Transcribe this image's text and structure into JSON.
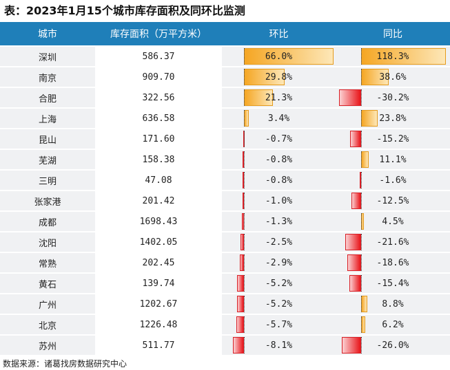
{
  "title": "表：2023年1月15个城市库存面积及同环比监测",
  "headers": {
    "city": "城市",
    "area": "库存面积（万平方米）",
    "mom": "环比",
    "yoy": "同比"
  },
  "rows": [
    {
      "city": "深圳",
      "area": "586.37",
      "mom": "66.0%",
      "yoy": "118.3%",
      "mom_value": 66.0,
      "yoy_value": 118.3
    },
    {
      "city": "南京",
      "area": "909.70",
      "mom": "29.8%",
      "yoy": "38.6%",
      "mom_value": 29.8,
      "yoy_value": 38.6
    },
    {
      "city": "合肥",
      "area": "322.56",
      "mom": "21.3%",
      "yoy": "-30.2%",
      "mom_value": 21.3,
      "yoy_value": -30.2
    },
    {
      "city": "上海",
      "area": "636.58",
      "mom": "3.4%",
      "yoy": "23.8%",
      "mom_value": 3.4,
      "yoy_value": 23.8
    },
    {
      "city": "昆山",
      "area": "171.60",
      "mom": "-0.7%",
      "yoy": "-15.2%",
      "mom_value": -0.7,
      "yoy_value": -15.2
    },
    {
      "city": "芜湖",
      "area": "158.38",
      "mom": "-0.8%",
      "yoy": "11.1%",
      "mom_value": -0.8,
      "yoy_value": 11.1
    },
    {
      "city": "三明",
      "area": "47.08",
      "mom": "-0.8%",
      "yoy": "-1.6%",
      "mom_value": -0.8,
      "yoy_value": -1.6
    },
    {
      "city": "张家港",
      "area": "201.42",
      "mom": "-1.0%",
      "yoy": "-12.5%",
      "mom_value": -1.0,
      "yoy_value": -12.5
    },
    {
      "city": "成都",
      "area": "1698.43",
      "mom": "-1.3%",
      "yoy": "4.5%",
      "mom_value": -1.3,
      "yoy_value": 4.5
    },
    {
      "city": "沈阳",
      "area": "1402.05",
      "mom": "-2.5%",
      "yoy": "-21.6%",
      "mom_value": -2.5,
      "yoy_value": -21.6
    },
    {
      "city": "常熟",
      "area": "202.45",
      "mom": "-2.9%",
      "yoy": "-18.6%",
      "mom_value": -2.9,
      "yoy_value": -18.6
    },
    {
      "city": "黄石",
      "area": "139.74",
      "mom": "-5.2%",
      "yoy": "-15.4%",
      "mom_value": -5.2,
      "yoy_value": -15.4
    },
    {
      "city": "广州",
      "area": "1202.67",
      "mom": "-5.2%",
      "yoy": "8.8%",
      "mom_value": -5.2,
      "yoy_value": 8.8
    },
    {
      "city": "北京",
      "area": "1226.48",
      "mom": "-5.7%",
      "yoy": "6.2%",
      "mom_value": -5.7,
      "yoy_value": 6.2
    },
    {
      "city": "苏州",
      "area": "511.77",
      "mom": "-8.1%",
      "yoy": "-26.0%",
      "mom_value": -8.1,
      "yoy_value": -26.0
    }
  ],
  "scales": {
    "mom": {
      "min": -8.1,
      "max": 66.0
    },
    "yoy": {
      "min": -30.2,
      "max": 118.3
    }
  },
  "colors": {
    "header_bg": "#1f7fb9",
    "positive_bar": "#f5a623",
    "negative_bar": "#e8161b",
    "row_bg": "#f0f1f3"
  },
  "source": "数据来源：诸葛找房数据研究中心"
}
